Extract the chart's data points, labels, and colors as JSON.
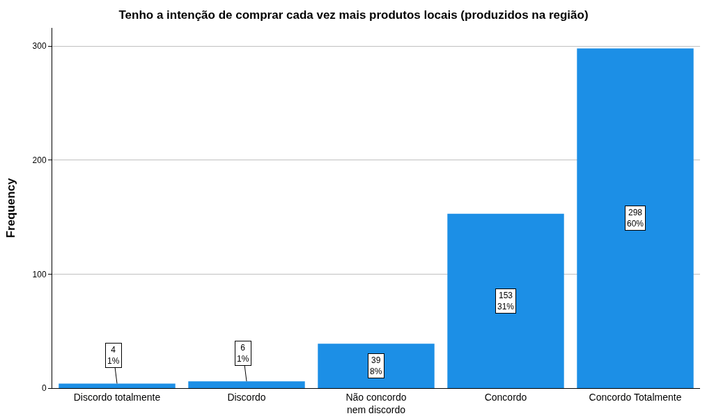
{
  "chart_data": {
    "type": "bar",
    "title": "Tenho a intenção de comprar cada vez mais produtos locais (produzidos na região)",
    "ylabel": "Frequency",
    "categories": [
      "Discordo totalmente",
      "Discordo",
      "Não concordo nem discordo",
      "Concordo",
      "Concordo Totalmente"
    ],
    "values": [
      4,
      6,
      39,
      153,
      298
    ],
    "value_labels": [
      "4\n1%",
      "6\n1%",
      "39\n8%",
      "153\n31%",
      "298\n60%"
    ],
    "color": "#1c8fe6",
    "ylim": [
      0,
      316
    ],
    "yticks": [
      0,
      100,
      200,
      300
    ],
    "grid": "y"
  }
}
